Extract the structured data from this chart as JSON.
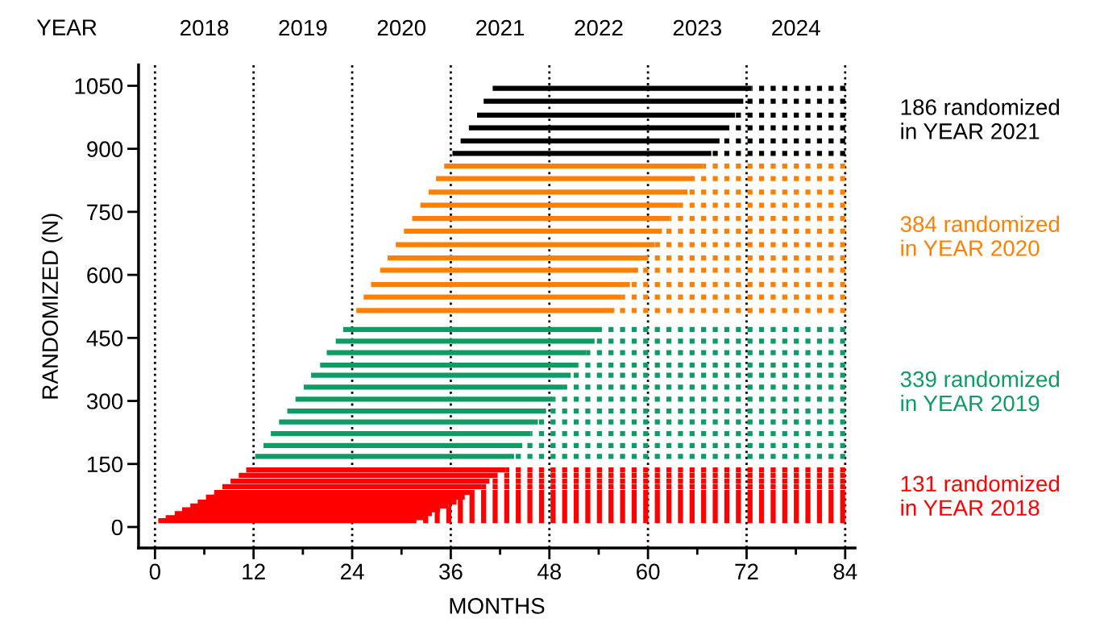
{
  "chart_data": {
    "type": "line",
    "xlabel": "MONTHS",
    "ylabel": "RANDOMIZED (N)",
    "x2label": "YEAR",
    "xlim": [
      -2,
      85.2
    ],
    "ylim": [
      -50,
      1100
    ],
    "xticks": [
      0,
      {
        "value": 6,
        "label": null
      },
      12,
      {
        "value": 18,
        "label": null
      },
      24,
      {
        "value": 30,
        "label": null
      },
      36,
      {
        "value": 42,
        "label": null
      },
      48,
      {
        "value": 54,
        "label": null
      },
      60,
      {
        "value": 66,
        "label": null
      },
      72,
      {
        "value": 78,
        "label": null
      },
      84
    ],
    "yticks": [
      0,
      150,
      300,
      450,
      600,
      750,
      900,
      1050
    ],
    "x2lim": [
      2017.333,
      2024.6
    ],
    "x2ticks": [
      2018,
      2019,
      2020,
      2021,
      2022,
      2023,
      2024
    ],
    "grid": false,
    "legend": false,
    "ref_lines": [
      {
        "axis": "x",
        "value": 0,
        "color": "#000000",
        "line_style": "dotted"
      },
      {
        "axis": "x",
        "value": 12,
        "color": "#000000",
        "line_style": "dotted"
      },
      {
        "axis": "x",
        "value": 24,
        "color": "#000000",
        "line_style": "dotted"
      },
      {
        "axis": "x",
        "value": 36,
        "color": "#000000",
        "line_style": "dotted"
      },
      {
        "axis": "x",
        "value": 48,
        "color": "#000000",
        "line_style": "dotted"
      },
      {
        "axis": "x",
        "value": 60,
        "color": "#000000",
        "line_style": "dotted"
      },
      {
        "axis": "x",
        "value": 72,
        "color": "#000000",
        "line_style": "dotted"
      },
      {
        "axis": "x",
        "value": 84,
        "color": "#000000",
        "line_style": "dotted"
      }
    ],
    "series": [
      {
        "name": "186 randomized\nin YEAR 2021",
        "color": "#000000",
        "line_style": "solid",
        "x": [
          41.1,
          72.6,
          null,
          40.0,
          71.6,
          null,
          39.2,
          70.6,
          null,
          38.2,
          69.6,
          null,
          37.2,
          68.7,
          null,
          36.2,
          67.7
        ],
        "values": [
          1044,
          1044,
          null,
          1013,
          1013,
          null,
          980,
          980,
          null,
          950,
          950,
          null,
          919,
          919,
          null,
          889,
          889
        ]
      },
      {
        "color": "#000000",
        "line_style": "dotted",
        "x": [
          72.6,
          84,
          null,
          71.6,
          84,
          null,
          70.6,
          84,
          null,
          69.6,
          84,
          null,
          68.7,
          84,
          null,
          67.7,
          84
        ],
        "values": [
          1044,
          1044,
          null,
          1013,
          1013,
          null,
          980,
          980,
          null,
          950,
          950,
          null,
          919,
          919,
          null,
          889,
          889
        ]
      },
      {
        "name": "384 randomized\nin YEAR 2020",
        "color": "#ff8000",
        "line_style": "solid",
        "x": [
          35.2,
          66.7,
          null,
          34.2,
          65.7,
          null,
          33.3,
          64.8,
          null,
          32.3,
          63.7,
          null,
          31.3,
          62.7,
          null,
          30.3,
          61.7,
          null,
          29.3,
          60.8,
          null,
          28.3,
          59.8,
          null,
          27.4,
          58.8,
          null,
          26.3,
          57.8,
          null,
          25.4,
          56.8,
          null,
          24.5,
          55.9
        ],
        "values": [
          859,
          859,
          null,
          829,
          829,
          null,
          797,
          797,
          null,
          766,
          766,
          null,
          734,
          734,
          null,
          704,
          704,
          null,
          672,
          672,
          null,
          640,
          640,
          null,
          611,
          611,
          null,
          577,
          577,
          null,
          547,
          547,
          null,
          515,
          515
        ]
      },
      {
        "color": "#ff8000",
        "line_style": "dotted",
        "x": [
          66.7,
          84,
          null,
          65.7,
          84,
          null,
          64.8,
          84,
          null,
          63.7,
          84,
          null,
          62.7,
          84,
          null,
          61.7,
          84,
          null,
          60.8,
          84,
          null,
          59.8,
          84,
          null,
          58.8,
          84,
          null,
          57.8,
          84,
          null,
          56.8,
          84,
          null,
          55.9,
          84
        ],
        "values": [
          859,
          859,
          null,
          829,
          829,
          null,
          797,
          797,
          null,
          766,
          766,
          null,
          734,
          734,
          null,
          704,
          704,
          null,
          672,
          672,
          null,
          640,
          640,
          null,
          611,
          611,
          null,
          577,
          577,
          null,
          547,
          547,
          null,
          515,
          515
        ]
      },
      {
        "name": "339 randomized\nin YEAR 2019",
        "color": "#109a64",
        "line_style": "solid",
        "x": [
          22.9,
          54.4,
          null,
          22.0,
          53.5,
          null,
          20.9,
          52.5,
          null,
          20.1,
          51.5,
          null,
          19.0,
          50.6,
          null,
          18.1,
          49.6,
          null,
          17.1,
          48.6,
          null,
          16.1,
          47.6,
          null,
          15.1,
          46.6,
          null,
          14.1,
          45.7,
          null,
          13.2,
          44.7,
          null,
          12.2,
          43.7
        ],
        "values": [
          470,
          470,
          null,
          442,
          442,
          null,
          415,
          415,
          null,
          385,
          385,
          null,
          361,
          361,
          null,
          333,
          333,
          null,
          304,
          304,
          null,
          276,
          276,
          null,
          250,
          250,
          null,
          222,
          222,
          null,
          194,
          194,
          null,
          168,
          168
        ]
      },
      {
        "color": "#109a64",
        "line_style": "dotted",
        "x": [
          54.4,
          84,
          null,
          53.5,
          84,
          null,
          52.5,
          84,
          null,
          51.5,
          84,
          null,
          50.6,
          84,
          null,
          49.6,
          84,
          null,
          48.6,
          84,
          null,
          47.6,
          84,
          null,
          46.6,
          84,
          null,
          45.7,
          84,
          null,
          44.7,
          84,
          null,
          43.7,
          84
        ],
        "values": [
          470,
          470,
          null,
          442,
          442,
          null,
          415,
          415,
          null,
          385,
          385,
          null,
          361,
          361,
          null,
          333,
          333,
          null,
          304,
          304,
          null,
          276,
          276,
          null,
          250,
          250,
          null,
          222,
          222,
          null,
          194,
          194,
          null,
          168,
          168
        ]
      },
      {
        "name": "131 randomized\nin YEAR 2018",
        "color": "#ff0000",
        "line_style": "solid",
        "x": [
          11.1,
          42.7,
          null,
          10.2,
          41.7,
          null,
          9.2,
          40.7,
          null,
          8.2,
          39.7,
          null,
          7.2,
          38.7,
          null,
          6.2,
          37.7,
          null,
          5.2,
          36.7,
          null,
          4.3,
          35.7,
          null,
          3.3,
          34.7,
          null,
          2.4,
          33.7,
          null,
          1.3,
          32.8,
          null,
          0.4,
          31.8
        ],
        "values": [
          136,
          136,
          null,
          123,
          123,
          null,
          109,
          109,
          null,
          96,
          96,
          null,
          82,
          82,
          null,
          71,
          71,
          null,
          59,
          59,
          null,
          50,
          50,
          null,
          41,
          41,
          null,
          32,
          32,
          null,
          22,
          22,
          null,
          15,
          15
        ]
      },
      {
        "color": "#ff0000",
        "line_style": "dotted",
        "x": [
          42.7,
          84,
          null,
          41.7,
          84,
          null,
          40.7,
          84,
          null,
          39.7,
          84,
          null,
          38.7,
          84,
          null,
          37.7,
          84,
          null,
          36.7,
          84,
          null,
          35.7,
          84,
          null,
          34.7,
          84,
          null,
          33.7,
          84,
          null,
          32.8,
          84,
          null,
          31.8,
          84
        ],
        "values": [
          136,
          136,
          null,
          123,
          123,
          null,
          109,
          109,
          null,
          96,
          96,
          null,
          82,
          82,
          null,
          71,
          71,
          null,
          59,
          59,
          null,
          50,
          50,
          null,
          41,
          41,
          null,
          32,
          32,
          null,
          22,
          22,
          null,
          15,
          15
        ]
      }
    ]
  }
}
